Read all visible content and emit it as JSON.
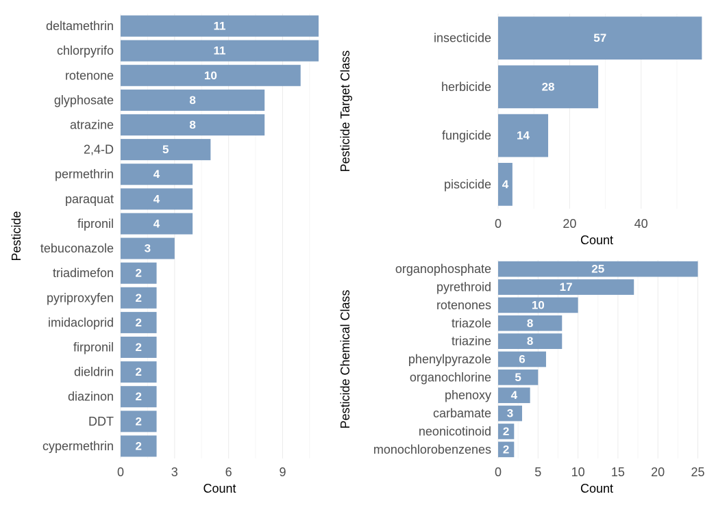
{
  "bar_color": "#7b9cc0",
  "chart_data": [
    {
      "id": "pesticide",
      "type": "bar",
      "orientation": "horizontal",
      "xlabel": "Count",
      "ylabel": "Pesticide",
      "xticks": [
        0,
        3,
        6,
        9
      ],
      "xlim": [
        0,
        11
      ],
      "grid": true,
      "categories": [
        "deltamethrin",
        "chlorpyrifo",
        "rotenone",
        "glyphosate",
        "atrazine",
        "2,4-D",
        "permethrin",
        "paraquat",
        "fipronil",
        "tebuconazole",
        "triadimefon",
        "pyriproxyfen",
        "imidacloprid",
        "firpronil",
        "dieldrin",
        "diazinon",
        "DDT",
        "cypermethrin"
      ],
      "values": [
        11,
        11,
        10,
        8,
        8,
        5,
        4,
        4,
        4,
        3,
        2,
        2,
        2,
        2,
        2,
        2,
        2,
        2
      ]
    },
    {
      "id": "target",
      "type": "bar",
      "orientation": "horizontal",
      "xlabel": "Count",
      "ylabel": "Pesticide Target Class",
      "xticks": [
        0,
        20,
        40
      ],
      "xlim": [
        0,
        57
      ],
      "grid": true,
      "categories": [
        "insecticide",
        "herbicide",
        "fungicide",
        "piscicide"
      ],
      "values": [
        57,
        28,
        14,
        4
      ]
    },
    {
      "id": "chemical",
      "type": "bar",
      "orientation": "horizontal",
      "xlabel": "Count",
      "ylabel": "Pesticide Chemical Class",
      "xticks": [
        0,
        5,
        10,
        15,
        20,
        25
      ],
      "xlim": [
        0,
        25
      ],
      "grid": true,
      "categories": [
        "organophosphate",
        "pyrethroid",
        "rotenones",
        "triazole",
        "triazine",
        "phenylpyrazole",
        "organochlorine",
        "phenoxy",
        "carbamate",
        "neonicotinoid",
        "monochlorobenzenes"
      ],
      "values": [
        25,
        17,
        10,
        8,
        8,
        6,
        5,
        4,
        3,
        2,
        2
      ]
    }
  ]
}
